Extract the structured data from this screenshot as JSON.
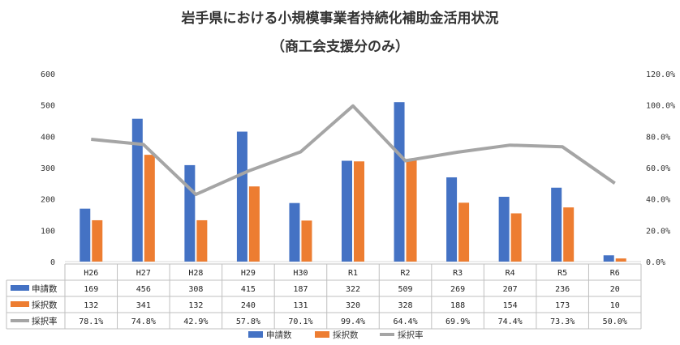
{
  "chart_data": {
    "type": "bar",
    "title": "岩手県における小規模事業者持続化補助金活用状況",
    "subtitle": "（商工会支援分のみ）",
    "categories": [
      "H26",
      "H27",
      "H28",
      "H29",
      "H30",
      "R1",
      "R2",
      "R3",
      "R4",
      "R5",
      "R6"
    ],
    "series": [
      {
        "name": "申請数",
        "type": "bar",
        "axis": "left",
        "color": "#4472C4",
        "values": [
          169,
          456,
          308,
          415,
          187,
          322,
          509,
          269,
          207,
          236,
          20
        ],
        "labels": [
          "169",
          "456",
          "308",
          "415",
          "187",
          "322",
          "509",
          "269",
          "207",
          "236",
          "20"
        ]
      },
      {
        "name": "採択数",
        "type": "bar",
        "axis": "left",
        "color": "#ED7D31",
        "values": [
          132,
          341,
          132,
          240,
          131,
          320,
          328,
          188,
          154,
          173,
          10
        ],
        "labels": [
          "132",
          "341",
          "132",
          "240",
          "131",
          "320",
          "328",
          "188",
          "154",
          "173",
          "10"
        ]
      },
      {
        "name": "採択率",
        "type": "line",
        "axis": "right",
        "color": "#A5A5A5",
        "values": [
          78.1,
          74.8,
          42.9,
          57.8,
          70.1,
          99.4,
          64.4,
          69.9,
          74.4,
          73.3,
          50.0
        ],
        "labels": [
          "78.1%",
          "74.8%",
          "42.9%",
          "57.8%",
          "70.1%",
          "99.4%",
          "64.4%",
          "69.9%",
          "74.4%",
          "73.3%",
          "50.0%"
        ]
      }
    ],
    "y_left": {
      "min": 0,
      "max": 600,
      "ticks": [
        "0",
        "100",
        "200",
        "300",
        "400",
        "500",
        "600"
      ]
    },
    "y_right": {
      "min": 0,
      "max": 120,
      "ticks": [
        "0.0%",
        "20.0%",
        "40.0%",
        "60.0%",
        "80.0%",
        "100.0%",
        "120.0%"
      ]
    },
    "grid": false,
    "data_table": true,
    "legend": "bottom"
  }
}
